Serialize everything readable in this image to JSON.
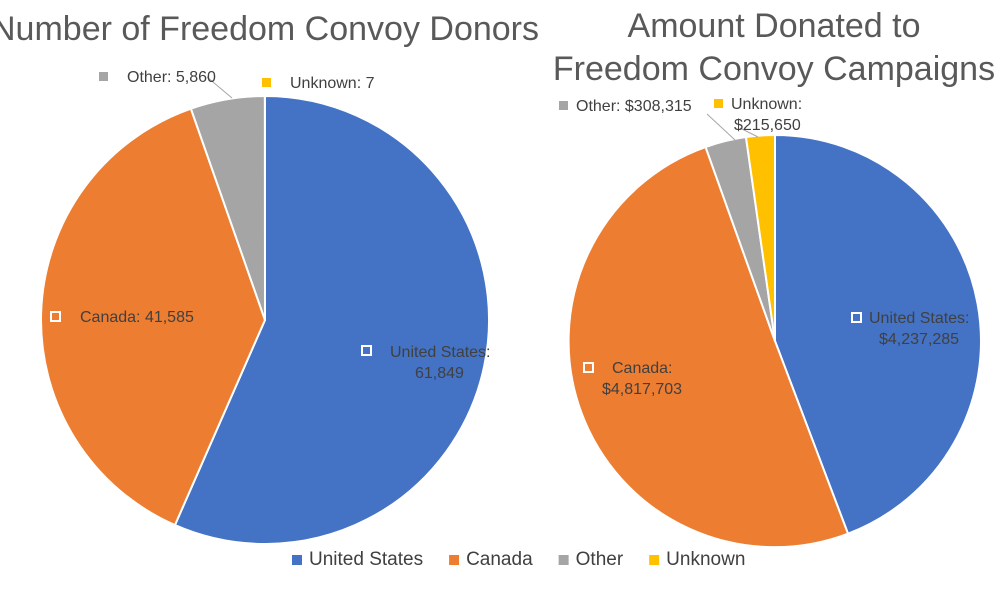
{
  "colors": {
    "United States": "#4472C4",
    "Canada": "#ED7D31",
    "Other": "#A5A5A5",
    "Unknown": "#FFC000"
  },
  "legend": {
    "entries": [
      "United States",
      "Canada",
      "Other",
      "Unknown"
    ]
  },
  "chart_data": [
    {
      "type": "pie",
      "title": "Number of Freedom Convoy Donors",
      "categories": [
        "United States",
        "Canada",
        "Other",
        "Unknown"
      ],
      "values": [
        61849,
        41585,
        5860,
        7
      ],
      "data_labels": [
        [
          "United States:",
          "61,849"
        ],
        [
          "Canada: 41,585"
        ],
        [
          "Other: 5,860"
        ],
        [
          "Unknown: 7"
        ]
      ]
    },
    {
      "type": "pie",
      "title": "Amount Donated to Freedom Convoy Campaigns",
      "categories": [
        "United States",
        "Canada",
        "Other",
        "Unknown"
      ],
      "values": [
        4237285,
        4817703,
        308315,
        215650
      ],
      "data_labels": [
        [
          "United States:",
          "$4,237,285"
        ],
        [
          "Canada:",
          "$4,817,703"
        ],
        [
          "Other: $308,315"
        ],
        [
          "Unknown:",
          "$215,650"
        ]
      ]
    }
  ]
}
